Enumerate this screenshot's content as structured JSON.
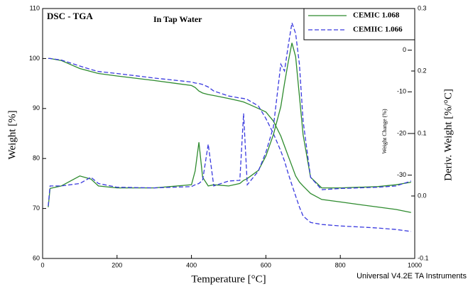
{
  "chart_data": {
    "type": "line",
    "title": "DSC - TGA",
    "annotation": "In Tap Water",
    "x_label": "Temperature [°C]",
    "y_label": "Weight [%]",
    "y2_label": "Deriv. Weight [%/°C]",
    "y3_label": "Weight Change (%)",
    "footer": "Universal V4.2E TA Instruments",
    "x": [
      15,
      20,
      50,
      100,
      130,
      150,
      200,
      300,
      400,
      410,
      420,
      430,
      445,
      460,
      500,
      530,
      540,
      550,
      580,
      600,
      620,
      640,
      650,
      660,
      670,
      680,
      690,
      700,
      720,
      750,
      800,
      850,
      900,
      950,
      990
    ],
    "series": [
      {
        "name": "CEMIC 1.068",
        "color": "#2e8b2e",
        "dash": false,
        "legend_text_color": "#8b6914",
        "values": [
          100,
          100,
          99.6,
          98,
          97.4,
          97,
          96.5,
          95.6,
          94.6,
          94.2,
          93.5,
          93.1,
          92.8,
          92.6,
          92,
          91.5,
          91.3,
          91,
          90,
          89.3,
          87.5,
          84.5,
          82.5,
          80.5,
          78.5,
          76.5,
          75.3,
          74.5,
          73,
          71.8,
          71.3,
          70.8,
          70.3,
          69.8,
          69.2
        ]
      },
      {
        "name": "CEMIIC 1.066",
        "color": "#3a3adf",
        "dash": true,
        "legend_text_color": "#4040c0",
        "values": [
          100,
          100,
          99.7,
          98.5,
          97.8,
          97.4,
          97,
          96.1,
          95.3,
          95.1,
          95,
          94.8,
          94.3,
          93.5,
          92.5,
          92.1,
          92,
          91.8,
          90.5,
          88,
          85,
          81.5,
          79.5,
          77,
          74.7,
          72.5,
          70.3,
          68.5,
          67.2,
          66.8,
          66.5,
          66.3,
          66.1,
          65.8,
          65.4
        ]
      },
      {
        "color": "#2e8b2e",
        "dash": false,
        "axis": "y2",
        "values": [
          -0.018,
          0.012,
          0.016,
          0.032,
          0.027,
          0.016,
          0.013,
          0.013,
          0.018,
          0.04,
          0.086,
          0.03,
          0.016,
          0.018,
          0.016,
          0.02,
          0.025,
          0.028,
          0.041,
          0.064,
          0.098,
          0.143,
          0.18,
          0.214,
          0.245,
          0.223,
          0.16,
          0.098,
          0.03,
          0.013,
          0.013,
          0.014,
          0.015,
          0.018,
          0.022
        ]
      },
      {
        "color": "#3a3adf",
        "dash": true,
        "axis": "y2",
        "values": [
          -0.016,
          0.016,
          0.016,
          0.02,
          0.03,
          0.02,
          0.014,
          0.013,
          0.015,
          0.018,
          0.02,
          0.025,
          0.083,
          0.016,
          0.024,
          0.025,
          0.132,
          0.018,
          0.04,
          0.07,
          0.11,
          0.211,
          0.2,
          0.24,
          0.277,
          0.26,
          0.211,
          0.12,
          0.03,
          0.01,
          0.012,
          0.013,
          0.014,
          0.016,
          0.024
        ]
      }
    ],
    "xlim": [
      0,
      1000
    ],
    "xticks": [
      0,
      200,
      400,
      600,
      800,
      1000
    ],
    "ylim": [
      60,
      110
    ],
    "yticks": [
      60,
      70,
      80,
      90,
      100,
      110
    ],
    "y2lim": [
      -0.1,
      0.3
    ],
    "y2ticks": [
      -0.1,
      {
        "value": 0,
        "label": "0.0"
      },
      0.1,
      0.2,
      0.3
    ],
    "y3lim": [
      -50,
      10
    ],
    "y3ticks": [
      0,
      -10,
      -20,
      -30
    ]
  }
}
